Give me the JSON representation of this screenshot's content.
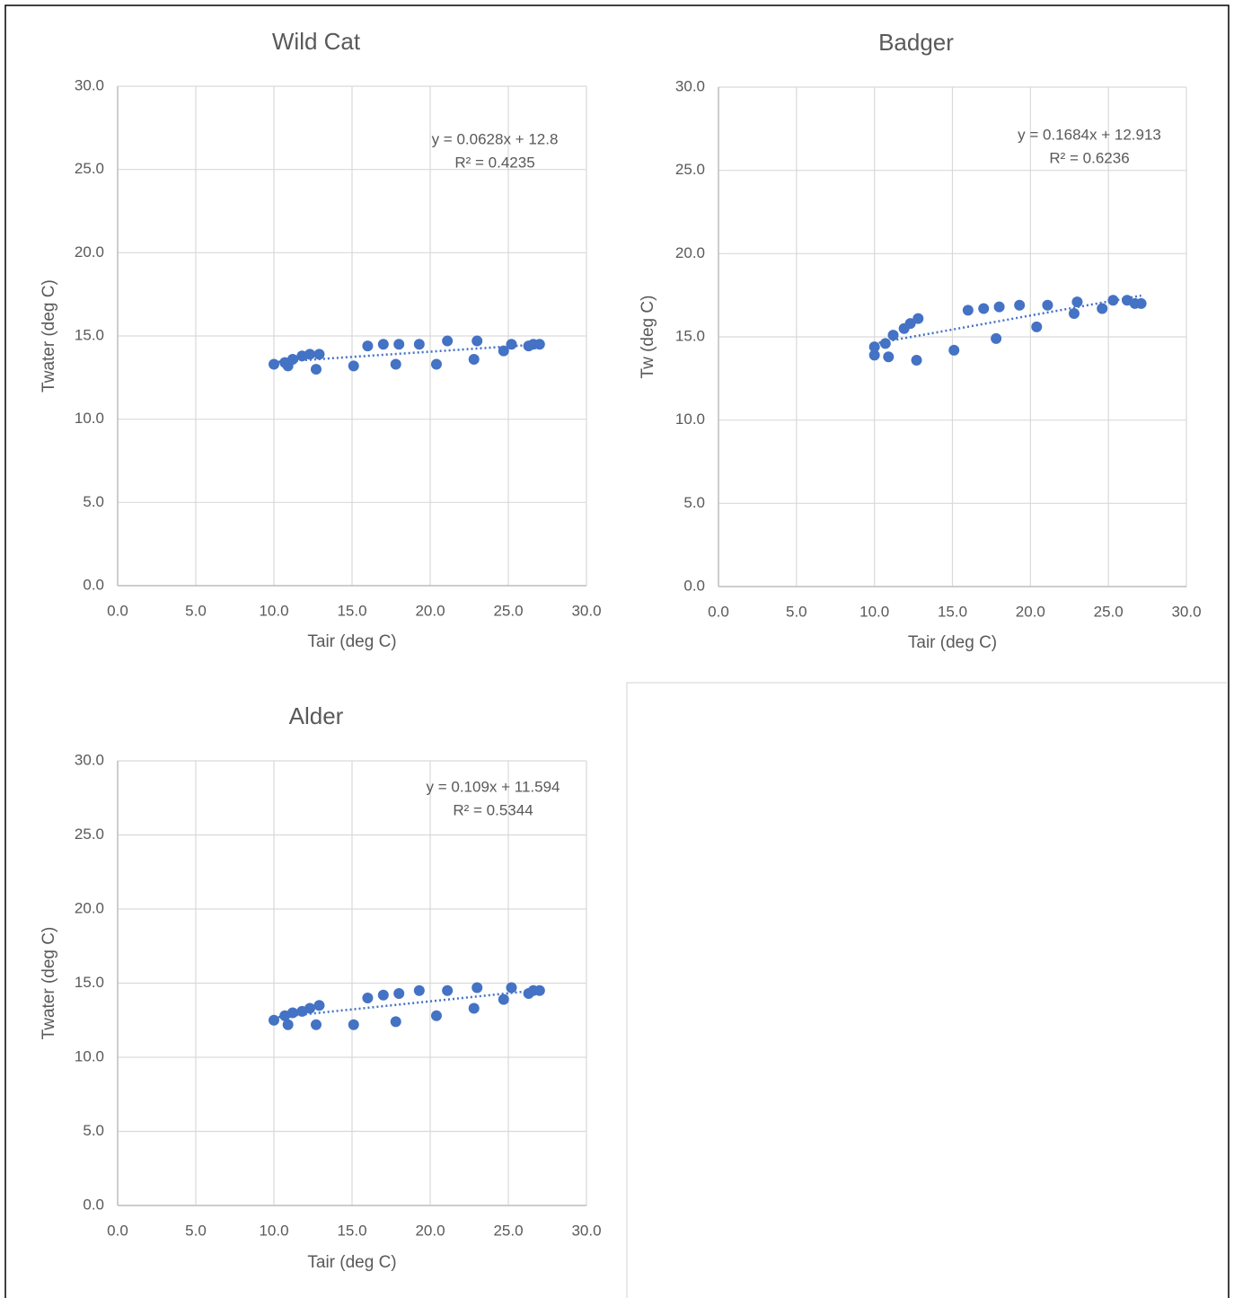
{
  "chart_data": [
    {
      "type": "scatter",
      "title": "Wild Cat",
      "x_label": "Tair (deg C)",
      "y_label": "Twater (deg C)",
      "grid": true,
      "xlim": [
        0,
        30
      ],
      "ylim": [
        0,
        30
      ],
      "xticks": [
        {
          "value": 0,
          "label": "0.0"
        },
        {
          "value": 5,
          "label": "5.0"
        },
        {
          "value": 10,
          "label": "10.0"
        },
        {
          "value": 15,
          "label": "15.0"
        },
        {
          "value": 20,
          "label": "20.0"
        },
        {
          "value": 25,
          "label": "25.0"
        },
        {
          "value": 30,
          "label": "30.0"
        }
      ],
      "yticks": [
        {
          "value": 0,
          "label": "0.0"
        },
        {
          "value": 5,
          "label": "5.0"
        },
        {
          "value": 10,
          "label": "10.0"
        },
        {
          "value": 15,
          "label": "15.0"
        },
        {
          "value": 20,
          "label": "20.0"
        },
        {
          "value": 25,
          "label": "25.0"
        },
        {
          "value": 30,
          "label": "30.0"
        }
      ],
      "series": [
        {
          "color": "#4472c4",
          "x": [
            10.0,
            10.7,
            10.9,
            11.2,
            11.8,
            12.3,
            12.7,
            12.9,
            15.1,
            16.0,
            17.0,
            18.0,
            17.8,
            19.3,
            20.4,
            21.1,
            22.8,
            23.0,
            24.7,
            25.2,
            26.3,
            26.6,
            27.0
          ],
          "values": [
            13.3,
            13.4,
            13.2,
            13.6,
            13.8,
            13.9,
            13.0,
            13.9,
            13.2,
            14.4,
            14.5,
            14.5,
            13.3,
            14.5,
            13.3,
            14.7,
            13.6,
            14.7,
            14.1,
            14.5,
            14.4,
            14.5,
            14.5
          ]
        }
      ],
      "trendline": {
        "equation": "y = 0.0628x + 12.8",
        "r_squared": "R² = 0.4235",
        "slope": 0.0628,
        "intercept": 12.8
      }
    },
    {
      "type": "scatter",
      "title": "Badger",
      "x_label": "Tair (deg C)",
      "y_label": "Tw (deg C)",
      "grid": true,
      "xlim": [
        0,
        30
      ],
      "ylim": [
        0,
        30
      ],
      "xticks": [
        {
          "value": 0,
          "label": "0.0"
        },
        {
          "value": 5,
          "label": "5.0"
        },
        {
          "value": 10,
          "label": "10.0"
        },
        {
          "value": 15,
          "label": "15.0"
        },
        {
          "value": 20,
          "label": "20.0"
        },
        {
          "value": 25,
          "label": "25.0"
        },
        {
          "value": 30,
          "label": "30.0"
        }
      ],
      "yticks": [
        {
          "value": 0,
          "label": "0.0"
        },
        {
          "value": 5,
          "label": "5.0"
        },
        {
          "value": 10,
          "label": "10.0"
        },
        {
          "value": 15,
          "label": "15.0"
        },
        {
          "value": 20,
          "label": "20.0"
        },
        {
          "value": 25,
          "label": "25.0"
        },
        {
          "value": 30,
          "label": "30.0"
        }
      ],
      "series": [
        {
          "color": "#4472c4",
          "x": [
            10.0,
            10.0,
            10.7,
            10.9,
            11.2,
            11.9,
            12.3,
            12.8,
            12.7,
            15.1,
            16.0,
            17.0,
            18.0,
            17.8,
            19.3,
            20.4,
            21.1,
            22.8,
            23.0,
            24.6,
            25.3,
            26.2,
            26.7,
            27.1
          ],
          "values": [
            14.4,
            13.9,
            14.6,
            13.8,
            15.1,
            15.5,
            15.8,
            16.1,
            13.6,
            14.2,
            16.6,
            16.7,
            16.8,
            14.9,
            16.9,
            15.6,
            16.9,
            16.4,
            17.1,
            16.7,
            17.2,
            17.2,
            17.0,
            17.0
          ]
        }
      ],
      "trendline": {
        "equation": "y = 0.1684x + 12.913",
        "r_squared": "R² = 0.6236",
        "slope": 0.1684,
        "intercept": 12.913
      }
    },
    {
      "type": "scatter",
      "title": "Alder",
      "x_label": "Tair (deg C)",
      "y_label": "Twater (deg C)",
      "grid": true,
      "xlim": [
        0,
        30
      ],
      "ylim": [
        0,
        30
      ],
      "xticks": [
        {
          "value": 0,
          "label": "0.0"
        },
        {
          "value": 5,
          "label": "5.0"
        },
        {
          "value": 10,
          "label": "10.0"
        },
        {
          "value": 15,
          "label": "15.0"
        },
        {
          "value": 20,
          "label": "20.0"
        },
        {
          "value": 25,
          "label": "25.0"
        },
        {
          "value": 30,
          "label": "30.0"
        }
      ],
      "yticks": [
        {
          "value": 0,
          "label": "0.0"
        },
        {
          "value": 5,
          "label": "5.0"
        },
        {
          "value": 10,
          "label": "10.0"
        },
        {
          "value": 15,
          "label": "15.0"
        },
        {
          "value": 20,
          "label": "20.0"
        },
        {
          "value": 25,
          "label": "25.0"
        },
        {
          "value": 30,
          "label": "30.0"
        }
      ],
      "series": [
        {
          "color": "#4472c4",
          "x": [
            10.0,
            10.7,
            10.9,
            11.2,
            11.8,
            12.3,
            12.7,
            12.9,
            15.1,
            16.0,
            17.0,
            18.0,
            17.8,
            19.3,
            20.4,
            21.1,
            22.8,
            23.0,
            24.7,
            25.2,
            26.3,
            26.6,
            27.0
          ],
          "values": [
            12.5,
            12.8,
            12.2,
            13.0,
            13.1,
            13.3,
            12.2,
            13.5,
            12.2,
            14.0,
            14.2,
            14.3,
            12.4,
            14.5,
            12.8,
            14.5,
            13.3,
            14.7,
            13.9,
            14.7,
            14.3,
            14.5,
            14.5
          ]
        }
      ],
      "trendline": {
        "equation": "y = 0.109x + 11.594",
        "r_squared": "R² = 0.5344",
        "slope": 0.109,
        "intercept": 11.594
      }
    }
  ]
}
